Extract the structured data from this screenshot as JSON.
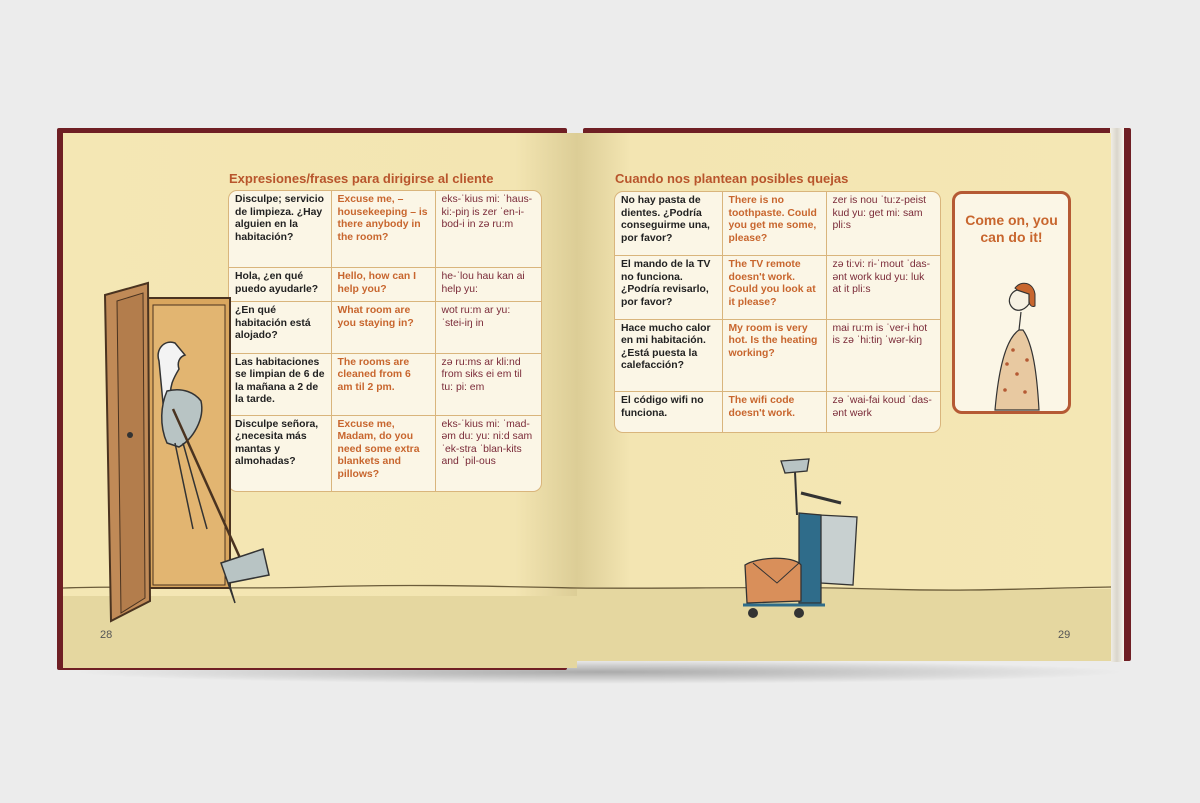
{
  "page_left": {
    "number": "28",
    "title": "Expresiones/frases para dirigirse al cliente",
    "rows": [
      {
        "es": "Disculpe; servicio de limpieza. ¿Hay alguien en la habitación?",
        "en": "Excuse me, – housekeeping – is there anybody in the room?",
        "ph": "eks-ˈkius mi: ˈhaus-ki:-piŋ is zer ˈen-i-bod-i in zə ru:m"
      },
      {
        "es": "Hola, ¿en qué puedo ayudarle?",
        "en": "Hello, how can I help you?",
        "ph": "he-ˈlou hau kan ai help yu:"
      },
      {
        "es": "¿En qué habitación está alojado?",
        "en": "What room are you staying in?",
        "ph": "wot ru:m ar yu: ˈstei-iŋ in"
      },
      {
        "es": "Las habitaciones se limpian de 6 de la mañana a 2 de la tarde.",
        "en": "The rooms are cleaned from 6 am til 2 pm.",
        "ph": "zə ru:ms ar kli:nd from siks ei em til tu: pi: em"
      },
      {
        "es": "Disculpe señora, ¿necesita más mantas y almohadas?",
        "en": "Excuse me, Madam, do you need some extra blankets and pillows?",
        "ph": "eks-ˈkius mi: ˈmad-əm du: yu: ni:d sam ˈek-stra ˈblan-kits and ˈpil-ous"
      }
    ]
  },
  "page_right": {
    "number": "29",
    "title": "Cuando nos plantean posibles quejas",
    "rows": [
      {
        "es": "No hay pasta de dientes. ¿Podría conseguirme una, por favor?",
        "en": "There is no toothpaste. Could you get me some, please?",
        "ph": "zer is nou ˈtu:z-peist kud yu: get mi: sam pli:s"
      },
      {
        "es": "El mando de la TV no funciona. ¿Podría revisarlo, por favor?",
        "en": "The TV remote doesn't work. Could you look at it please?",
        "ph": "zə ti:vi: ri-ˈmout ˈdas-ənt work kud yu: luk at it pli:s"
      },
      {
        "es": "Hace mucho calor en mi habitación. ¿Está puesta la calefacción?",
        "en": "My room is very hot. Is the heating working?",
        "ph": "mai ru:m is ˈver-i hot is zə ˈhi:tiŋ ˈwər-kiŋ"
      },
      {
        "es": "El código wifi no funciona.",
        "en": "The wifi code doesn't work.",
        "ph": "zə ˈwai-fai koud ˈdas-ənt wərk"
      }
    ],
    "callout": "Come on, you can do it!"
  },
  "colors": {
    "heading": "#b8552c",
    "english": "#c8662e",
    "phonetic": "#7a2a38",
    "cover": "#6f1f24",
    "page": "#f4e7b4"
  }
}
